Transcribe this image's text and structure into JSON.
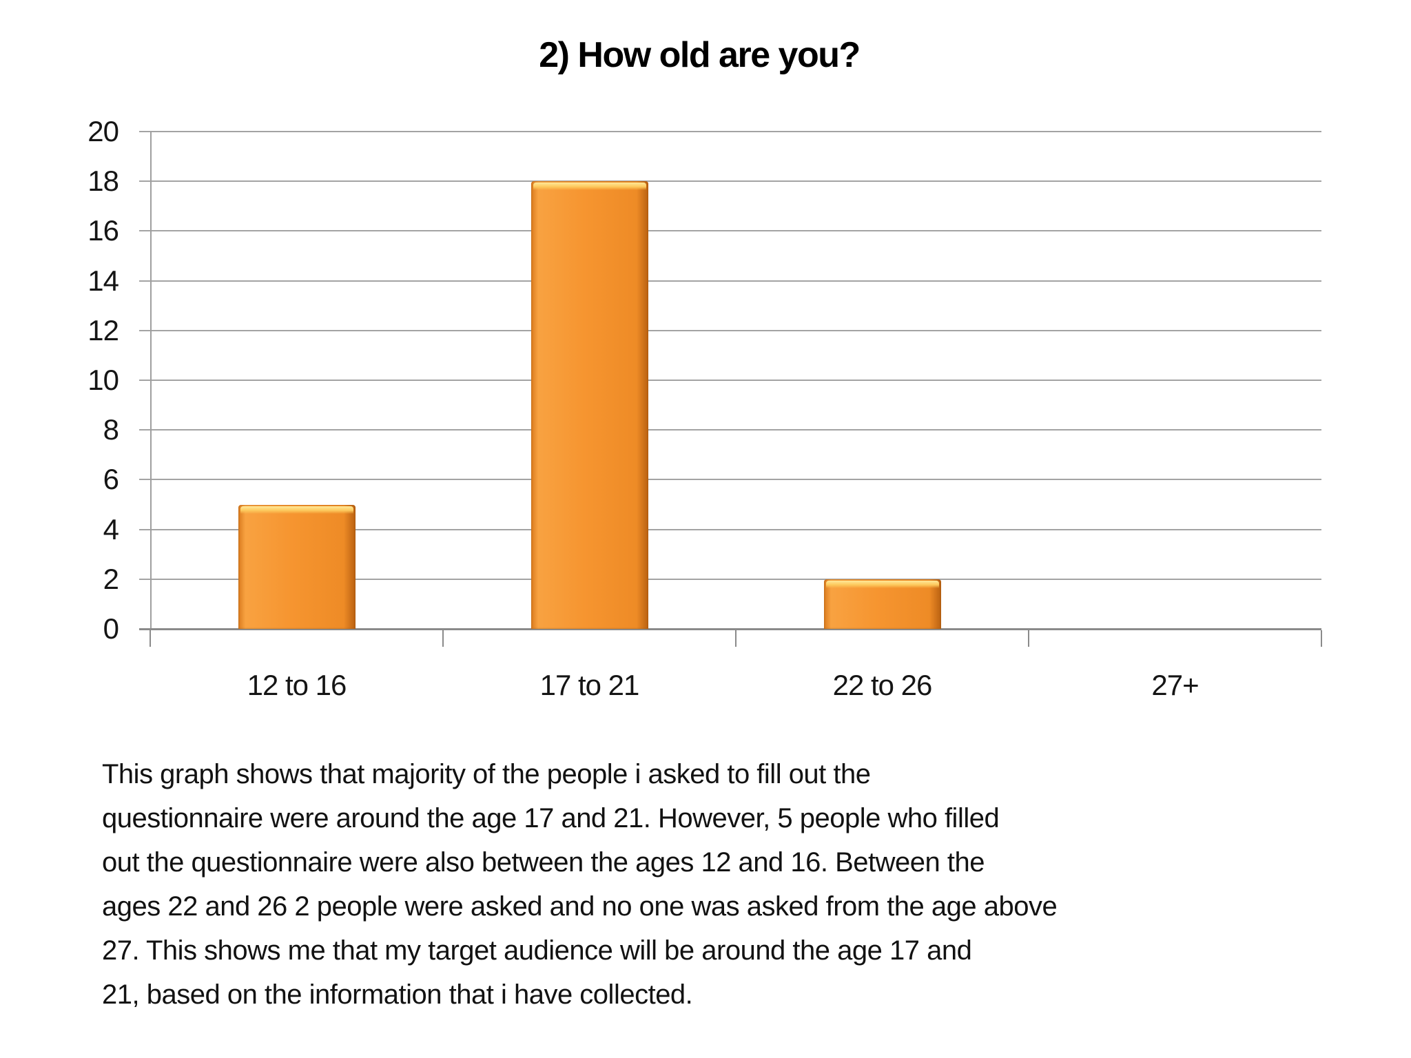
{
  "page": {
    "background": "#ffffff"
  },
  "chart_data": {
    "type": "bar",
    "title": "2) How old are you?",
    "categories": [
      "12 to 16",
      "17 to 21",
      "22 to 26",
      "27+"
    ],
    "values": [
      5,
      18,
      2,
      0
    ],
    "xlabel": "",
    "ylabel": "",
    "ylim": [
      0,
      20
    ],
    "yticks": [
      0,
      2,
      4,
      6,
      8,
      10,
      12,
      14,
      16,
      18,
      20
    ],
    "grid": true,
    "legend": "none",
    "colors": {
      "bar_fill": "#F2912C",
      "bar_top_bevel": "#FDC95D",
      "bar_edge_dark": "#B96111",
      "gridline": "#A3A3A3",
      "axis_line": "#8A8A8A",
      "text": "#111111"
    }
  },
  "caption": {
    "lines": [
      "This graph shows that majority of the people i asked to fill out the",
      "questionnaire were around the age 17 and 21. However, 5 people who filled",
      "out the questionnaire were also between the ages 12 and 16. Between the",
      "ages 22 and 26 2 people were asked and no one was asked from the age above",
      "27. This shows me that my target audience will be around the age 17 and",
      "21, based on the information that i have collected."
    ]
  }
}
